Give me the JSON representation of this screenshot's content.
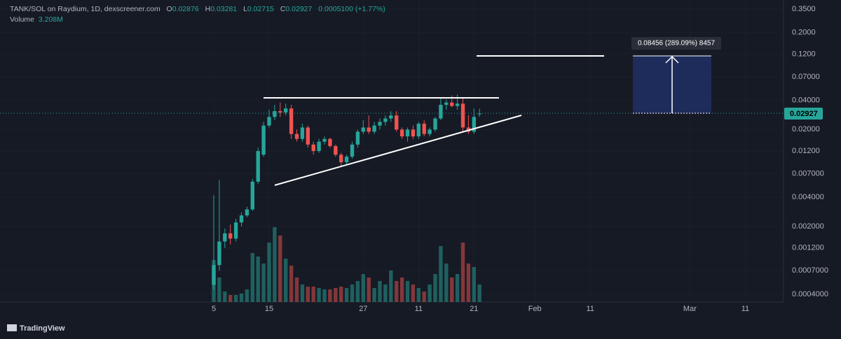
{
  "chart_data": {
    "type": "candlestick",
    "title": "TANK/SOL on Raydium, 1D, dexscreener.com",
    "ohlc_letters": [
      "O",
      "H",
      "L",
      "C"
    ],
    "change": "0.0005100 (+1.77%)",
    "volume_title": "Volume",
    "volume_value_label": "3.208M",
    "measure_label": "0.08456 (289.09%) 8457",
    "brand": "TradingView",
    "log_scale": true,
    "grid": true,
    "up_color": "#26a69a",
    "down_color": "#ef5350",
    "x": [
      0,
      1,
      2,
      3,
      4,
      5,
      6,
      7,
      8,
      9,
      10,
      11,
      12,
      13,
      14,
      15,
      16,
      17,
      18,
      19,
      20,
      21,
      22,
      23,
      24,
      25,
      26,
      27,
      28,
      29,
      30,
      31,
      32,
      33,
      34,
      35,
      36,
      37,
      38,
      39,
      40,
      41,
      42,
      43,
      44,
      45,
      46,
      47,
      48
    ],
    "open": [
      0.0005,
      0.0008,
      0.0014,
      0.0017,
      0.0015,
      0.0022,
      0.0026,
      0.003,
      0.0058,
      0.011,
      0.022,
      0.027,
      0.031,
      0.03,
      0.033,
      0.018,
      0.016,
      0.021,
      0.014,
      0.012,
      0.015,
      0.016,
      0.0135,
      0.011,
      0.0092,
      0.0105,
      0.014,
      0.019,
      0.021,
      0.019,
      0.022,
      0.024,
      0.026,
      0.028,
      0.02,
      0.017,
      0.02,
      0.017,
      0.023,
      0.018,
      0.02,
      0.026,
      0.036,
      0.038,
      0.035,
      0.037,
      0.021,
      0.019,
      0.02876
    ],
    "high": [
      0.0042,
      0.006,
      0.0019,
      0.0021,
      0.0024,
      0.0028,
      0.0032,
      0.0062,
      0.013,
      0.024,
      0.032,
      0.036,
      0.038,
      0.037,
      0.036,
      0.02,
      0.023,
      0.022,
      0.015,
      0.016,
      0.017,
      0.0165,
      0.014,
      0.0115,
      0.011,
      0.015,
      0.02,
      0.025,
      0.028,
      0.024,
      0.026,
      0.028,
      0.031,
      0.031,
      0.021,
      0.021,
      0.022,
      0.024,
      0.025,
      0.021,
      0.027,
      0.042,
      0.041,
      0.045,
      0.046,
      0.042,
      0.028,
      0.033,
      0.03281
    ],
    "low": [
      0.00045,
      0.0007,
      0.0012,
      0.0013,
      0.0014,
      0.002,
      0.0025,
      0.0029,
      0.0055,
      0.0105,
      0.021,
      0.025,
      0.027,
      0.028,
      0.016,
      0.015,
      0.015,
      0.013,
      0.011,
      0.0115,
      0.014,
      0.013,
      0.0105,
      0.0085,
      0.0088,
      0.01,
      0.013,
      0.018,
      0.018,
      0.018,
      0.02,
      0.022,
      0.024,
      0.019,
      0.016,
      0.015,
      0.016,
      0.016,
      0.017,
      0.017,
      0.019,
      0.025,
      0.032,
      0.034,
      0.032,
      0.019,
      0.018,
      0.018,
      0.02715
    ],
    "close": [
      0.0008,
      0.0014,
      0.0017,
      0.0015,
      0.0022,
      0.0026,
      0.003,
      0.0058,
      0.012,
      0.022,
      0.027,
      0.031,
      0.03,
      0.033,
      0.018,
      0.016,
      0.021,
      0.014,
      0.012,
      0.015,
      0.016,
      0.0135,
      0.011,
      0.0092,
      0.0105,
      0.014,
      0.019,
      0.021,
      0.019,
      0.022,
      0.024,
      0.026,
      0.028,
      0.02,
      0.017,
      0.02,
      0.017,
      0.023,
      0.018,
      0.02,
      0.026,
      0.036,
      0.038,
      0.035,
      0.037,
      0.021,
      0.019,
      0.027,
      0.02927
    ],
    "volume": [
      7699000,
      4491000,
      1925000,
      1283000,
      1283000,
      1540000,
      2310000,
      8982000,
      8341000,
      7058000,
      10907000,
      13730000,
      12190000,
      7956000,
      6673000,
      4491000,
      3208000,
      2823000,
      2823000,
      2566000,
      2310000,
      2310000,
      2566000,
      2823000,
      2566000,
      3208000,
      3850000,
      5133000,
      4491000,
      2566000,
      3850000,
      3208000,
      5774000,
      3850000,
      4491000,
      3850000,
      3208000,
      2566000,
      1925000,
      3208000,
      5133000,
      10266000,
      7058000,
      4491000,
      5133000,
      10907000,
      7058000,
      6416000,
      3208000
    ],
    "xlim": [
      -38.61,
      102.91
    ],
    "xticks": [
      {
        "value": 0,
        "label": "5"
      },
      {
        "value": 10,
        "label": "15"
      },
      27,
      {
        "value": 37,
        "label": "11"
      },
      {
        "value": 47,
        "label": "21"
      },
      {
        "value": 58,
        "label": "Feb"
      },
      {
        "value": 68,
        "label": "11"
      },
      {
        "value": 86,
        "label": "Mar"
      },
      {
        "value": 96,
        "label": "11"
      }
    ],
    "ylim": [
      0.000333,
      0.434
    ],
    "yticks": [
      {
        "value": 0.35,
        "label": "0.3500"
      },
      {
        "value": 0.2,
        "label": "0.2000"
      },
      {
        "value": 0.12,
        "label": "0.1200"
      },
      {
        "value": 0.07,
        "label": "0.07000"
      },
      {
        "value": 0.04,
        "label": "0.04000"
      },
      {
        "value": 0.02,
        "label": "0.02000"
      },
      {
        "value": 0.012,
        "label": "0.01200"
      },
      {
        "value": 0.007,
        "label": "0.007000"
      },
      {
        "value": 0.004,
        "label": "0.004000"
      },
      {
        "value": 0.002,
        "label": "0.002000"
      },
      {
        "value": 0.0012,
        "label": "0.001200"
      },
      {
        "value": 0.0007,
        "label": "0.0007000"
      },
      {
        "value": 0.0004,
        "label": "0.0004000"
      }
    ]
  }
}
